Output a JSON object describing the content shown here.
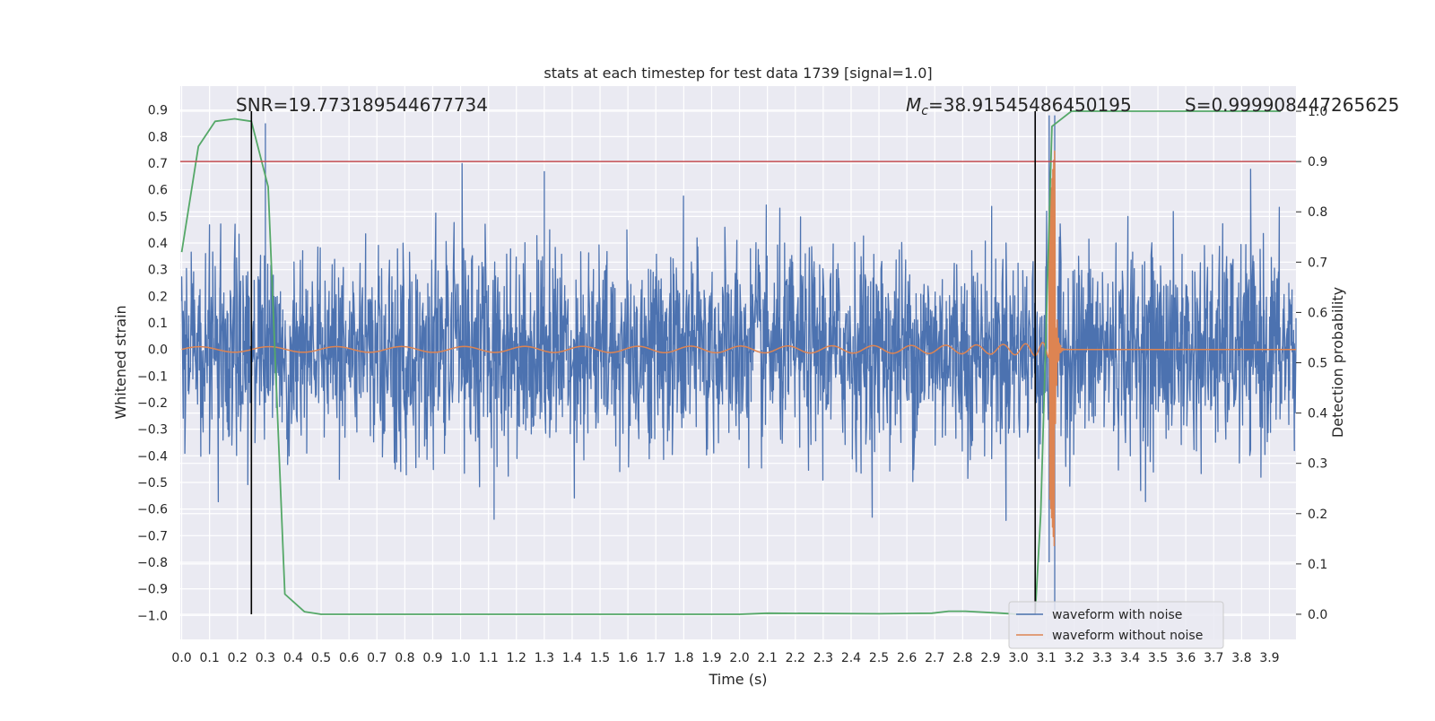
{
  "chart_data": {
    "type": "line",
    "title": "stats at each timestep for test data 1739 [signal=1.0]",
    "xlabel": "Time (s)",
    "ylabel": "Whitened strain",
    "y2label": "Detection probability",
    "xlim": [
      -0.005,
      3.995
    ],
    "ylim": [
      -1.09,
      0.99
    ],
    "y2lim": [
      -0.05,
      1.05
    ],
    "xticks": [
      "0.0",
      "0.1",
      "0.2",
      "0.3",
      "0.4",
      "0.5",
      "0.6",
      "0.7",
      "0.8",
      "0.9",
      "1.0",
      "1.1",
      "1.2",
      "1.3",
      "1.4",
      "1.5",
      "1.6",
      "1.7",
      "1.8",
      "1.9",
      "2.0",
      "2.1",
      "2.2",
      "2.3",
      "2.4",
      "2.5",
      "2.6",
      "2.7",
      "2.8",
      "2.9",
      "3.0",
      "3.1",
      "3.2",
      "3.3",
      "3.4",
      "3.5",
      "3.6",
      "3.7",
      "3.8",
      "3.9"
    ],
    "yticks": [
      "0.9",
      "0.8",
      "0.7",
      "0.6",
      "0.5",
      "0.4",
      "0.3",
      "0.2",
      "0.1",
      "0.0",
      "−0.1",
      "−0.2",
      "−0.3",
      "−0.4",
      "−0.5",
      "−0.6",
      "−0.7",
      "−0.8",
      "−0.9",
      "−1.0"
    ],
    "y2ticks": [
      "1.0",
      "0.9",
      "0.8",
      "0.7",
      "0.6",
      "0.5",
      "0.4",
      "0.3",
      "0.2",
      "0.1",
      "0.0"
    ],
    "annotations": {
      "snr": "SNR=19.773189544677734",
      "mc_prefix": "M",
      "mc_sub": "c",
      "mc_value": "=38.91545486450195",
      "s_value": "S=0.999908447265625"
    },
    "threshold": {
      "value": 0.9,
      "axis": "y2",
      "color": "#C44E52"
    },
    "vlines": [
      {
        "x": 0.25
      },
      {
        "x": 3.06
      }
    ],
    "series": [
      {
        "name": "waveform with noise",
        "color": "#4C72B0",
        "axis": "y",
        "style": "noise",
        "noise_amplitude_std": 0.19,
        "spikes": [
          [
            0.3,
            -0.2,
            0.85
          ],
          [
            1.3,
            -0.2,
            0.67
          ],
          [
            1.12,
            -0.64,
            0.1
          ],
          [
            3.13,
            -0.98,
            0.88
          ],
          [
            3.11,
            -0.8,
            0.88
          ]
        ]
      },
      {
        "name": "waveform without noise",
        "color": "#DD8452",
        "axis": "y",
        "style": "chirp",
        "merger_time": 3.13,
        "peak": 0.75,
        "trough": -0.76
      },
      {
        "name": "Detection probability",
        "color": "#55A868",
        "axis": "y2",
        "x": [
          0.0,
          0.06,
          0.12,
          0.19,
          0.25,
          0.31,
          0.37,
          0.44,
          0.5,
          1.0,
          2.0,
          2.1,
          2.5,
          2.69,
          2.75,
          2.81,
          2.94,
          3.0,
          3.06,
          3.08,
          3.12,
          3.19,
          3.25,
          3.5,
          3.94
        ],
        "y": [
          0.72,
          0.93,
          0.98,
          0.985,
          0.98,
          0.85,
          0.04,
          0.005,
          0.0,
          0.0,
          0.0,
          0.002,
          0.001,
          0.002,
          0.006,
          0.006,
          0.002,
          0.0,
          0.0,
          0.2,
          0.97,
          1.0,
          1.0,
          1.0,
          1.0
        ]
      }
    ],
    "legend": {
      "position": "lower-right",
      "entries": [
        "waveform with noise",
        "waveform without noise"
      ]
    }
  }
}
